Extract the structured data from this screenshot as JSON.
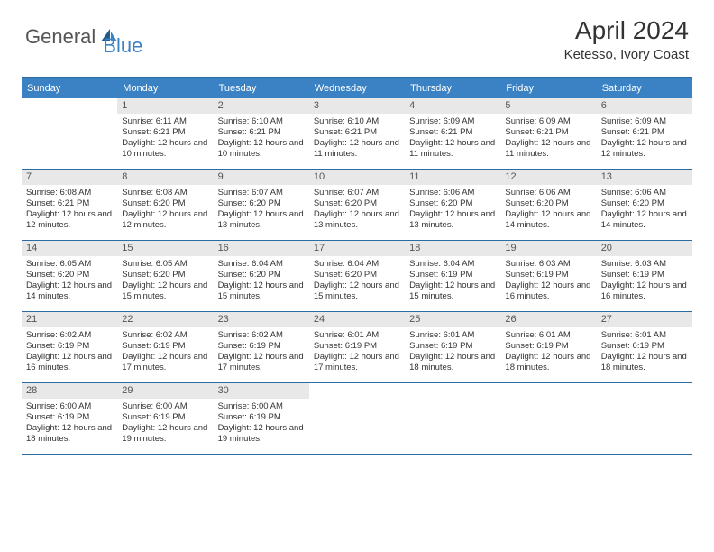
{
  "logo": {
    "text1": "General",
    "text2": "Blue"
  },
  "title": "April 2024",
  "location": "Ketesso, Ivory Coast",
  "colors": {
    "header_bg": "#3b82c4",
    "header_text": "#ffffff",
    "border": "#2d6ca2",
    "daynum_bg": "#e8e8e8",
    "body_text": "#333333",
    "logo_gray": "#555555",
    "logo_blue": "#3b82c4"
  },
  "day_names": [
    "Sunday",
    "Monday",
    "Tuesday",
    "Wednesday",
    "Thursday",
    "Friday",
    "Saturday"
  ],
  "weeks": [
    [
      {
        "n": "",
        "sr": "",
        "ss": "",
        "dl": ""
      },
      {
        "n": "1",
        "sr": "Sunrise: 6:11 AM",
        "ss": "Sunset: 6:21 PM",
        "dl": "Daylight: 12 hours and 10 minutes."
      },
      {
        "n": "2",
        "sr": "Sunrise: 6:10 AM",
        "ss": "Sunset: 6:21 PM",
        "dl": "Daylight: 12 hours and 10 minutes."
      },
      {
        "n": "3",
        "sr": "Sunrise: 6:10 AM",
        "ss": "Sunset: 6:21 PM",
        "dl": "Daylight: 12 hours and 11 minutes."
      },
      {
        "n": "4",
        "sr": "Sunrise: 6:09 AM",
        "ss": "Sunset: 6:21 PM",
        "dl": "Daylight: 12 hours and 11 minutes."
      },
      {
        "n": "5",
        "sr": "Sunrise: 6:09 AM",
        "ss": "Sunset: 6:21 PM",
        "dl": "Daylight: 12 hours and 11 minutes."
      },
      {
        "n": "6",
        "sr": "Sunrise: 6:09 AM",
        "ss": "Sunset: 6:21 PM",
        "dl": "Daylight: 12 hours and 12 minutes."
      }
    ],
    [
      {
        "n": "7",
        "sr": "Sunrise: 6:08 AM",
        "ss": "Sunset: 6:21 PM",
        "dl": "Daylight: 12 hours and 12 minutes."
      },
      {
        "n": "8",
        "sr": "Sunrise: 6:08 AM",
        "ss": "Sunset: 6:20 PM",
        "dl": "Daylight: 12 hours and 12 minutes."
      },
      {
        "n": "9",
        "sr": "Sunrise: 6:07 AM",
        "ss": "Sunset: 6:20 PM",
        "dl": "Daylight: 12 hours and 13 minutes."
      },
      {
        "n": "10",
        "sr": "Sunrise: 6:07 AM",
        "ss": "Sunset: 6:20 PM",
        "dl": "Daylight: 12 hours and 13 minutes."
      },
      {
        "n": "11",
        "sr": "Sunrise: 6:06 AM",
        "ss": "Sunset: 6:20 PM",
        "dl": "Daylight: 12 hours and 13 minutes."
      },
      {
        "n": "12",
        "sr": "Sunrise: 6:06 AM",
        "ss": "Sunset: 6:20 PM",
        "dl": "Daylight: 12 hours and 14 minutes."
      },
      {
        "n": "13",
        "sr": "Sunrise: 6:06 AM",
        "ss": "Sunset: 6:20 PM",
        "dl": "Daylight: 12 hours and 14 minutes."
      }
    ],
    [
      {
        "n": "14",
        "sr": "Sunrise: 6:05 AM",
        "ss": "Sunset: 6:20 PM",
        "dl": "Daylight: 12 hours and 14 minutes."
      },
      {
        "n": "15",
        "sr": "Sunrise: 6:05 AM",
        "ss": "Sunset: 6:20 PM",
        "dl": "Daylight: 12 hours and 15 minutes."
      },
      {
        "n": "16",
        "sr": "Sunrise: 6:04 AM",
        "ss": "Sunset: 6:20 PM",
        "dl": "Daylight: 12 hours and 15 minutes."
      },
      {
        "n": "17",
        "sr": "Sunrise: 6:04 AM",
        "ss": "Sunset: 6:20 PM",
        "dl": "Daylight: 12 hours and 15 minutes."
      },
      {
        "n": "18",
        "sr": "Sunrise: 6:04 AM",
        "ss": "Sunset: 6:19 PM",
        "dl": "Daylight: 12 hours and 15 minutes."
      },
      {
        "n": "19",
        "sr": "Sunrise: 6:03 AM",
        "ss": "Sunset: 6:19 PM",
        "dl": "Daylight: 12 hours and 16 minutes."
      },
      {
        "n": "20",
        "sr": "Sunrise: 6:03 AM",
        "ss": "Sunset: 6:19 PM",
        "dl": "Daylight: 12 hours and 16 minutes."
      }
    ],
    [
      {
        "n": "21",
        "sr": "Sunrise: 6:02 AM",
        "ss": "Sunset: 6:19 PM",
        "dl": "Daylight: 12 hours and 16 minutes."
      },
      {
        "n": "22",
        "sr": "Sunrise: 6:02 AM",
        "ss": "Sunset: 6:19 PM",
        "dl": "Daylight: 12 hours and 17 minutes."
      },
      {
        "n": "23",
        "sr": "Sunrise: 6:02 AM",
        "ss": "Sunset: 6:19 PM",
        "dl": "Daylight: 12 hours and 17 minutes."
      },
      {
        "n": "24",
        "sr": "Sunrise: 6:01 AM",
        "ss": "Sunset: 6:19 PM",
        "dl": "Daylight: 12 hours and 17 minutes."
      },
      {
        "n": "25",
        "sr": "Sunrise: 6:01 AM",
        "ss": "Sunset: 6:19 PM",
        "dl": "Daylight: 12 hours and 18 minutes."
      },
      {
        "n": "26",
        "sr": "Sunrise: 6:01 AM",
        "ss": "Sunset: 6:19 PM",
        "dl": "Daylight: 12 hours and 18 minutes."
      },
      {
        "n": "27",
        "sr": "Sunrise: 6:01 AM",
        "ss": "Sunset: 6:19 PM",
        "dl": "Daylight: 12 hours and 18 minutes."
      }
    ],
    [
      {
        "n": "28",
        "sr": "Sunrise: 6:00 AM",
        "ss": "Sunset: 6:19 PM",
        "dl": "Daylight: 12 hours and 18 minutes."
      },
      {
        "n": "29",
        "sr": "Sunrise: 6:00 AM",
        "ss": "Sunset: 6:19 PM",
        "dl": "Daylight: 12 hours and 19 minutes."
      },
      {
        "n": "30",
        "sr": "Sunrise: 6:00 AM",
        "ss": "Sunset: 6:19 PM",
        "dl": "Daylight: 12 hours and 19 minutes."
      },
      {
        "n": "",
        "sr": "",
        "ss": "",
        "dl": ""
      },
      {
        "n": "",
        "sr": "",
        "ss": "",
        "dl": ""
      },
      {
        "n": "",
        "sr": "",
        "ss": "",
        "dl": ""
      },
      {
        "n": "",
        "sr": "",
        "ss": "",
        "dl": ""
      }
    ]
  ]
}
